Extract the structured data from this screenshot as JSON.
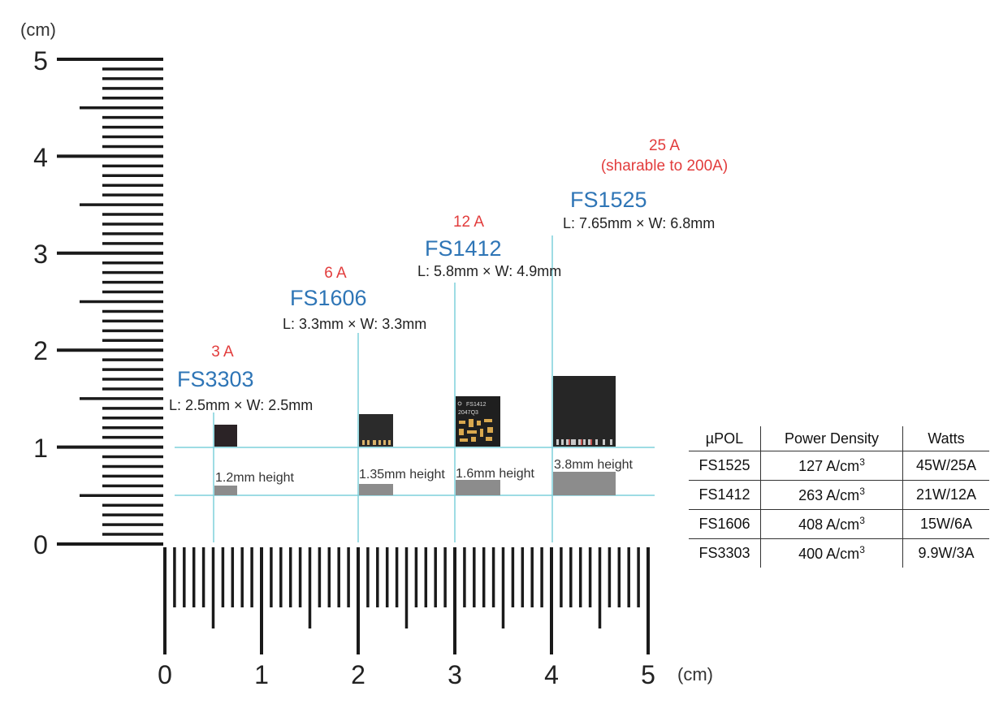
{
  "ruler": {
    "unit_label": "(cm)",
    "y_ticks": [
      "0",
      "1",
      "2",
      "3",
      "4",
      "5"
    ],
    "x_ticks": [
      "0",
      "1",
      "2",
      "3",
      "4",
      "5"
    ]
  },
  "colors": {
    "part_name": "#2e75b6",
    "current": "#e23c3c",
    "guide_line": "#7fd0dc",
    "ruler": "#1a1a1a",
    "chip_body": "#2b2b2b",
    "height_bar": "#8c8c8c"
  },
  "parts": [
    {
      "id": "fs3303",
      "current": "3 A",
      "name": "FS3303",
      "dims": "L: 2.5mm × W: 2.5mm",
      "height_label": "1.2mm height"
    },
    {
      "id": "fs1606",
      "current": "6 A",
      "name": "FS1606",
      "dims": "L: 3.3mm × W: 3.3mm",
      "height_label": "1.35mm height"
    },
    {
      "id": "fs1412",
      "current": "12 A",
      "name": "FS1412",
      "dims": "L: 5.8mm × W: 4.9mm",
      "height_label": "1.6mm height",
      "chip_marking": [
        "FS1412",
        "2047Q3"
      ]
    },
    {
      "id": "fs1525",
      "current": "25 A",
      "current_note": "(sharable to 200A)",
      "name": "FS1525",
      "dims": "L: 7.65mm × W: 6.8mm",
      "height_label": "3.8mm height"
    }
  ],
  "table": {
    "headers": [
      "µPOL",
      "Power Density",
      "Watts"
    ],
    "density_unit_base": "A/cm",
    "density_unit_exp": "3",
    "rows": [
      {
        "part": "FS1525",
        "density": "127",
        "watts": "45W/25A"
      },
      {
        "part": "FS1412",
        "density": "263",
        "watts": "21W/12A"
      },
      {
        "part": "FS1606",
        "density": "408",
        "watts": "15W/6A"
      },
      {
        "part": "FS3303",
        "density": "400",
        "watts": "9.9W/3A"
      }
    ]
  }
}
